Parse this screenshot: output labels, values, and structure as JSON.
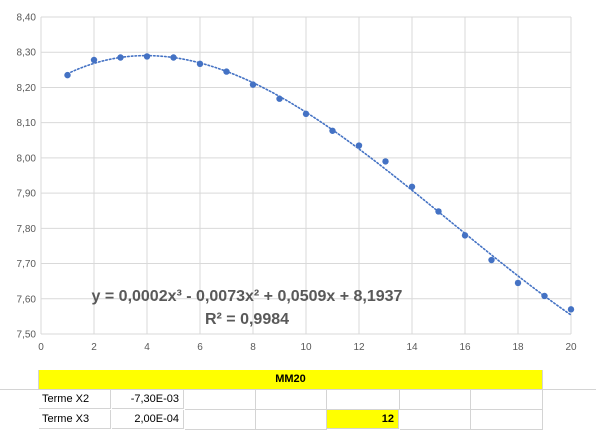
{
  "chart_data": {
    "type": "scatter",
    "title": "",
    "x": [
      1,
      2,
      3,
      4,
      5,
      6,
      7,
      8,
      9,
      10,
      11,
      12,
      13,
      14,
      15,
      16,
      17,
      18,
      19,
      20
    ],
    "series": [
      {
        "values": [
          8.235,
          8.278,
          8.285,
          8.288,
          8.285,
          8.267,
          8.245,
          8.208,
          8.168,
          8.125,
          8.077,
          8.035,
          7.99,
          7.918,
          7.848,
          7.78,
          7.71,
          7.645,
          7.608,
          7.57
        ],
        "color": "#4472c4"
      }
    ],
    "trendline": {
      "type": "polynomial-3",
      "coefficients": [
        0.0002,
        -0.0073,
        0.0509,
        8.1937
      ],
      "style": "dotted",
      "color": "#4472c4"
    },
    "equation_text": "y = 0,0002x³ - 0,0073x² + 0,0509x + 8,1937",
    "r2_text": "R² = 0,9984",
    "xlim": [
      0,
      20
    ],
    "ylim": [
      7.5,
      8.4
    ],
    "x_ticks": [
      "0",
      "2",
      "4",
      "6",
      "8",
      "10",
      "12",
      "14",
      "16",
      "18",
      "20"
    ],
    "y_ticks": [
      "7,50",
      "7,60",
      "7,70",
      "7,80",
      "7,90",
      "8,00",
      "8,10",
      "8,20",
      "8,30",
      "8,40"
    ],
    "grid": true,
    "legend": "none"
  },
  "sheet": {
    "header_label": "MM20",
    "rows": [
      {
        "label": "Terme X2",
        "value": "-7,30E-03"
      },
      {
        "label": "Terme X3",
        "value": "2,00E-04",
        "highlight_value": "12"
      }
    ]
  },
  "colors": {
    "marker": "#4472c4",
    "gridline": "#d9d9d9",
    "highlight": "#ffff00"
  }
}
